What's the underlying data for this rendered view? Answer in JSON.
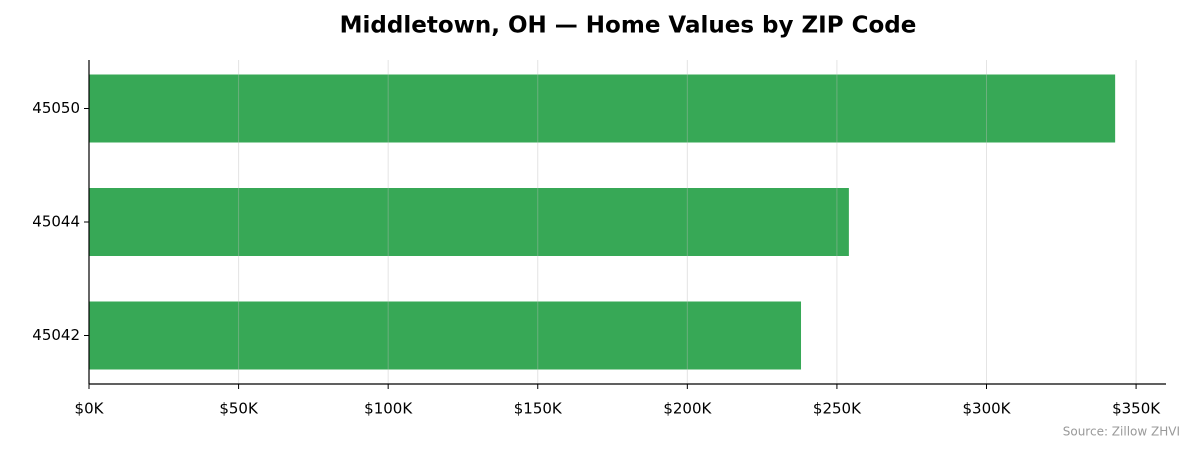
{
  "chart_data": {
    "type": "barh",
    "title": "Middletown, OH — Home Values by ZIP Code",
    "categories": [
      "45050",
      "45044",
      "45042"
    ],
    "values": [
      343000,
      254000,
      238000
    ],
    "color": "#37a856",
    "xlim": [
      0,
      360000
    ],
    "xticks": [
      {
        "value": 0,
        "label": "$0K"
      },
      {
        "value": 50000,
        "label": "$50K"
      },
      {
        "value": 100000,
        "label": "$100K"
      },
      {
        "value": 150000,
        "label": "$150K"
      },
      {
        "value": 200000,
        "label": "$200K"
      },
      {
        "value": 250000,
        "label": "$250K"
      },
      {
        "value": 300000,
        "label": "$300K"
      },
      {
        "value": 350000,
        "label": "$350K"
      }
    ],
    "grid": true,
    "source": "Source: Zillow ZHVI"
  }
}
